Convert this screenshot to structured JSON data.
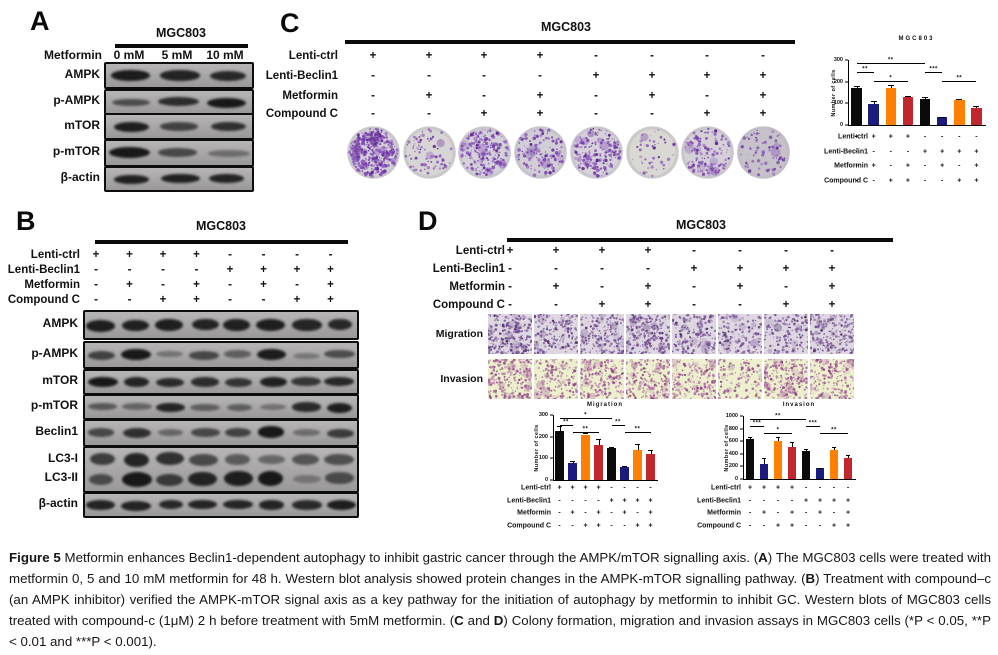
{
  "condition_rows": [
    {
      "label": "Lenti-ctrl",
      "values": [
        "+",
        "+",
        "+",
        "+",
        "-",
        "-",
        "-",
        "-"
      ]
    },
    {
      "label": "Lenti-Beclin1",
      "values": [
        "-",
        "-",
        "-",
        "-",
        "+",
        "+",
        "+",
        "+"
      ]
    },
    {
      "label": "Metformin",
      "values": [
        "-",
        "+",
        "-",
        "+",
        "-",
        "+",
        "-",
        "+"
      ]
    },
    {
      "label": "Compound C",
      "values": [
        "-",
        "-",
        "+",
        "+",
        "-",
        "-",
        "+",
        "+"
      ]
    }
  ],
  "panelA": {
    "label": "A",
    "cell_line": "MGC803",
    "treatment": "Metformin",
    "doses": [
      "0 mM",
      "5 mM",
      "10 mM"
    ],
    "blots": [
      {
        "label": "AMPK",
        "bands": [
          0.92,
          0.86,
          0.82
        ]
      },
      {
        "label": "p-AMPK",
        "bands": [
          0.5,
          0.78,
          0.95
        ]
      },
      {
        "label": "mTOR",
        "bands": [
          0.9,
          0.6,
          0.75
        ]
      },
      {
        "label": "p-mTOR",
        "bands": [
          0.95,
          0.55,
          0.22
        ]
      },
      {
        "label": "β-actin",
        "bands": [
          0.88,
          0.88,
          0.86
        ]
      }
    ]
  },
  "panelB": {
    "label": "B",
    "cell_line": "MGC803",
    "blots": [
      {
        "label": "AMPK",
        "bands": [
          0.9,
          0.88,
          0.9,
          0.86,
          0.88,
          0.9,
          0.85,
          0.82
        ]
      },
      {
        "label": "p-AMPK",
        "bands": [
          0.6,
          0.95,
          0.18,
          0.55,
          0.35,
          0.92,
          0.12,
          0.5
        ]
      },
      {
        "label": "mTOR",
        "bands": [
          0.95,
          0.85,
          0.8,
          0.78,
          0.72,
          0.88,
          0.7,
          0.82
        ]
      },
      {
        "label": "p-mTOR",
        "bands": [
          0.4,
          0.3,
          0.85,
          0.35,
          0.35,
          0.18,
          0.8,
          0.9
        ]
      },
      {
        "label": "Beclin1",
        "bands": [
          0.55,
          0.75,
          0.28,
          0.55,
          0.6,
          0.95,
          0.22,
          0.65
        ]
      },
      {
        "label": "LC3-I",
        "label2": "LC3-II",
        "bands": [
          0.65,
          0.85,
          0.75,
          0.55,
          0.4,
          0.3,
          0.45,
          0.5
        ],
        "bands2": [
          0.5,
          0.95,
          0.65,
          0.85,
          0.9,
          0.95,
          0.12,
          0.5
        ]
      },
      {
        "label": "β-actin",
        "bands": [
          0.85,
          0.85,
          0.82,
          0.85,
          0.85,
          0.85,
          0.8,
          0.9
        ]
      }
    ]
  },
  "panelC": {
    "label": "C",
    "cell_line": "MGC803",
    "well_densities": [
      0.92,
      0.12,
      0.5,
      0.3,
      0.45,
      0.04,
      0.25,
      0.1
    ],
    "well_bgs": [
      "#d6d1d8",
      "#d8d6d4",
      "#d5d1d8",
      "#d2ced6",
      "#d6d2d8",
      "#d9d8d2",
      "#d4d0d6",
      "#c7c2ca"
    ]
  },
  "panelD": {
    "label": "D",
    "cell_line": "MGC803",
    "row_labels": [
      "Migration",
      "Invasion"
    ],
    "migration_densities": [
      0.85,
      0.55,
      0.6,
      0.75,
      0.5,
      0.4,
      0.45,
      0.7
    ],
    "invasion_densities": [
      0.85,
      0.5,
      0.65,
      0.7,
      0.6,
      0.3,
      0.7,
      0.55
    ]
  },
  "chart_data": [
    {
      "id": "colony",
      "type": "bar",
      "title": "MGC803",
      "ylabel": "Number of cells",
      "ylim": [
        0,
        300
      ],
      "yticks": [
        0,
        100,
        200,
        300
      ],
      "values": [
        170,
        95,
        170,
        130,
        122,
        35,
        115,
        78
      ],
      "errors": [
        8,
        15,
        15,
        6,
        7,
        4,
        5,
        10
      ],
      "bar_colors": [
        "#0b0b0b",
        "#1b1b7e",
        "#ff7f00",
        "#c1272d",
        "#0b0b0b",
        "#1b1b7e",
        "#ff7f00",
        "#c1272d"
      ],
      "significance": [
        {
          "from": 1,
          "to": 5,
          "label": "**",
          "level": 0
        },
        {
          "from": 1,
          "to": 2,
          "label": "**",
          "level": 1
        },
        {
          "from": 5,
          "to": 6,
          "label": "***",
          "level": 1
        },
        {
          "from": 2,
          "to": 4,
          "label": "*",
          "level": 2
        },
        {
          "from": 6,
          "to": 8,
          "label": "**",
          "level": 2
        }
      ]
    },
    {
      "id": "migration",
      "type": "bar",
      "title": "Migration",
      "ylabel": "Number of cells",
      "ylim": [
        0,
        300
      ],
      "yticks": [
        0,
        100,
        200,
        300
      ],
      "values": [
        228,
        78,
        210,
        162,
        146,
        60,
        140,
        122
      ],
      "errors": [
        22,
        8,
        8,
        25,
        8,
        4,
        25,
        15
      ],
      "bar_colors": [
        "#0b0b0b",
        "#1b1b7e",
        "#ff7f00",
        "#c1272d",
        "#0b0b0b",
        "#1b1b7e",
        "#ff7f00",
        "#c1272d"
      ],
      "significance": [
        {
          "from": 1,
          "to": 5,
          "label": "*",
          "level": 0
        },
        {
          "from": 1,
          "to": 2,
          "label": "**",
          "level": 1
        },
        {
          "from": 5,
          "to": 6,
          "label": "**",
          "level": 1
        },
        {
          "from": 2,
          "to": 4,
          "label": "**",
          "level": 2
        },
        {
          "from": 6,
          "to": 8,
          "label": "**",
          "level": 2
        }
      ]
    },
    {
      "id": "invasion",
      "type": "bar",
      "title": "Invasion",
      "ylabel": "Number of cells",
      "ylim": [
        0,
        1000
      ],
      "yticks": [
        0,
        200,
        400,
        600,
        800,
        1000
      ],
      "values": [
        630,
        240,
        610,
        510,
        450,
        170,
        460,
        340
      ],
      "errors": [
        40,
        90,
        50,
        80,
        30,
        12,
        50,
        40
      ],
      "bar_colors": [
        "#0b0b0b",
        "#1b1b7e",
        "#ff7f00",
        "#c1272d",
        "#0b0b0b",
        "#1b1b7e",
        "#ff7f00",
        "#c1272d"
      ],
      "significance": [
        {
          "from": 1,
          "to": 5,
          "label": "**",
          "level": 0
        },
        {
          "from": 1,
          "to": 2,
          "label": "***",
          "level": 1
        },
        {
          "from": 5,
          "to": 6,
          "label": "***",
          "level": 1
        },
        {
          "from": 2,
          "to": 4,
          "label": "*",
          "level": 2
        },
        {
          "from": 6,
          "to": 8,
          "label": "**",
          "level": 2
        }
      ]
    }
  ],
  "caption": {
    "segments": [
      {
        "t": "Figure 5 ",
        "b": true
      },
      {
        "t": "Metformin enhances Beclin1-dependent autophagy to inhibit gastric cancer through the AMPK/mTOR signalling axis. (",
        "b": false
      },
      {
        "t": "A",
        "b": true
      },
      {
        "t": ") The MGC803 cells were treated with metformin 0, 5 and 10 mM metformin for 48 h. Western blot analysis showed protein changes in the AMPK-mTOR signalling pathway. (",
        "b": false
      },
      {
        "t": "B",
        "b": true
      },
      {
        "t": ") Treatment with compound–c (an AMPK inhibitor) verified the AMPK-mTOR signal axis as a key pathway for the initiation of autophagy by metformin to inhibit GC. Western blots of MGC803 cells treated with compound-c (1μM) 2 h before treatment with 5mM metformin. (",
        "b": false
      },
      {
        "t": "C",
        "b": true
      },
      {
        "t": " and ",
        "b": false
      },
      {
        "t": "D",
        "b": true
      },
      {
        "t": ") Colony formation, migration and invasion assays in MGC803 cells (*P < 0.05, **P < 0.01 and ***P < 0.001).",
        "b": false
      }
    ]
  }
}
